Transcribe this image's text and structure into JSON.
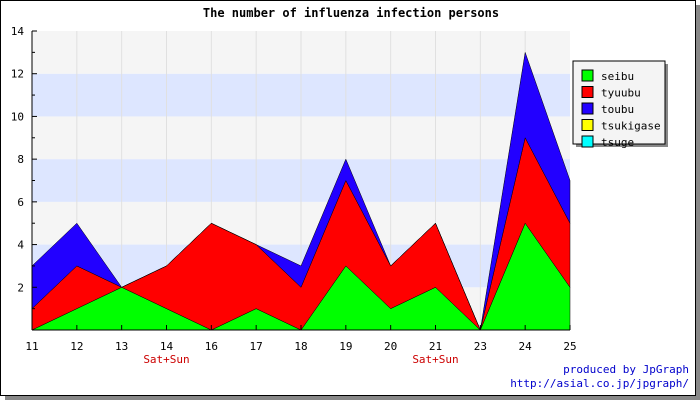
{
  "chart_data": {
    "type": "area",
    "stacked": true,
    "title": "The number of influenza infection persons",
    "categories": [
      "11",
      "12",
      "13",
      "14",
      "16",
      "17",
      "18",
      "19",
      "20",
      "21",
      "23",
      "24",
      "25"
    ],
    "category_notes": [
      "",
      "",
      "",
      "Sat+Sun",
      "",
      "",
      "",
      "",
      "",
      "Sat+Sun",
      "",
      "",
      ""
    ],
    "ylim": [
      0,
      14
    ],
    "yticks": [
      2,
      4,
      6,
      8,
      10,
      12,
      14
    ],
    "series": [
      {
        "name": "seibu",
        "color": "#00ff00",
        "values": [
          0,
          1,
          2,
          1,
          0,
          1,
          0,
          3,
          1,
          2,
          0,
          5,
          2
        ]
      },
      {
        "name": "tyuubu",
        "color": "#ff0000",
        "values": [
          1,
          2,
          0,
          2,
          5,
          3,
          2,
          4,
          2,
          3,
          0,
          4,
          3
        ]
      },
      {
        "name": "toubu",
        "color": "#2200ff",
        "values": [
          2,
          2,
          0,
          0,
          0,
          0,
          1,
          1,
          0,
          0,
          0,
          4,
          2
        ]
      },
      {
        "name": "tsukigase",
        "color": "#ffff00",
        "values": [
          0,
          0,
          0,
          0,
          0,
          0,
          0,
          0,
          0,
          0,
          0,
          0,
          0
        ]
      },
      {
        "name": "tsuge",
        "color": "#00ffff",
        "values": [
          0,
          0,
          0,
          0,
          0,
          0,
          0,
          0,
          0,
          0,
          0,
          0,
          0
        ]
      }
    ],
    "grid": true,
    "legend": "top-right",
    "band_colors": [
      "#f5f5f5",
      "#dde6ff"
    ]
  },
  "credit": {
    "line1": "produced by JpGraph",
    "line2": "http://asial.co.jp/jpgraph/"
  }
}
